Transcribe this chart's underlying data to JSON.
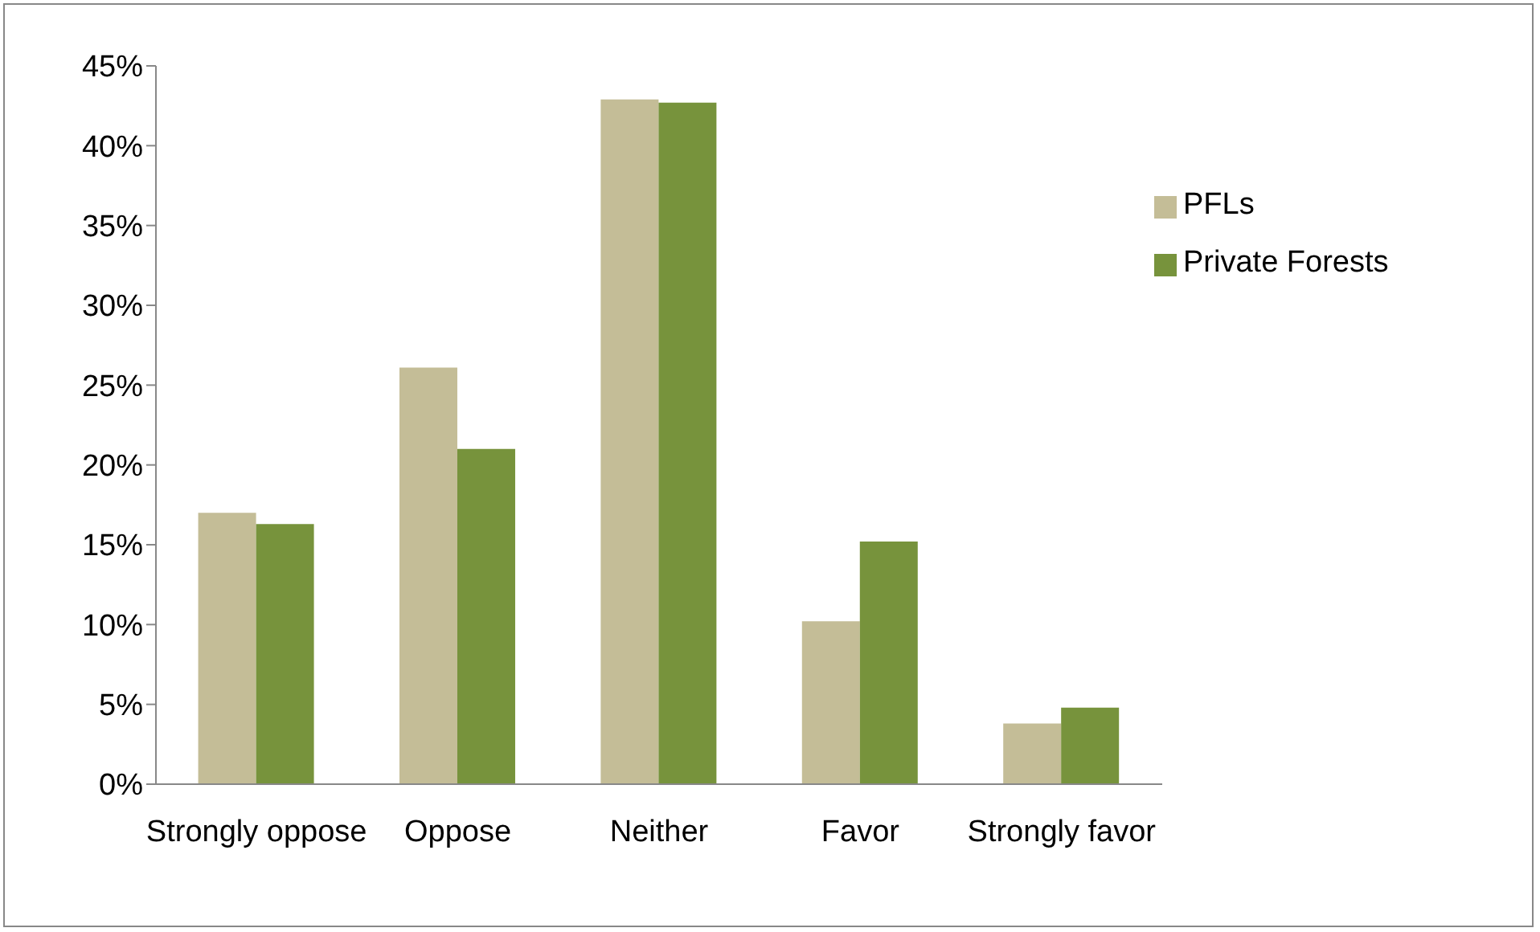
{
  "chart_data": {
    "type": "bar",
    "categories": [
      "Strongly oppose",
      "Oppose",
      "Neither",
      "Favor",
      "Strongly favor"
    ],
    "series": [
      {
        "name": "PFLs",
        "color": "#c4bd97",
        "values": [
          17.0,
          26.1,
          42.9,
          10.2,
          3.8
        ]
      },
      {
        "name": "Private Forests",
        "color": "#77933c",
        "values": [
          16.3,
          21.0,
          42.7,
          15.2,
          4.8
        ]
      }
    ],
    "ylim": [
      0,
      45
    ],
    "yticks": [
      {
        "value": 0,
        "label": "0%"
      },
      {
        "value": 5,
        "label": "5%"
      },
      {
        "value": 10,
        "label": "10%"
      },
      {
        "value": 15,
        "label": "15%"
      },
      {
        "value": 20,
        "label": "20%"
      },
      {
        "value": 25,
        "label": "25%"
      },
      {
        "value": 30,
        "label": "30%"
      },
      {
        "value": 35,
        "label": "35%"
      },
      {
        "value": 40,
        "label": "40%"
      },
      {
        "value": 45,
        "label": "45%"
      }
    ],
    "grid": false,
    "legend": "top right"
  }
}
